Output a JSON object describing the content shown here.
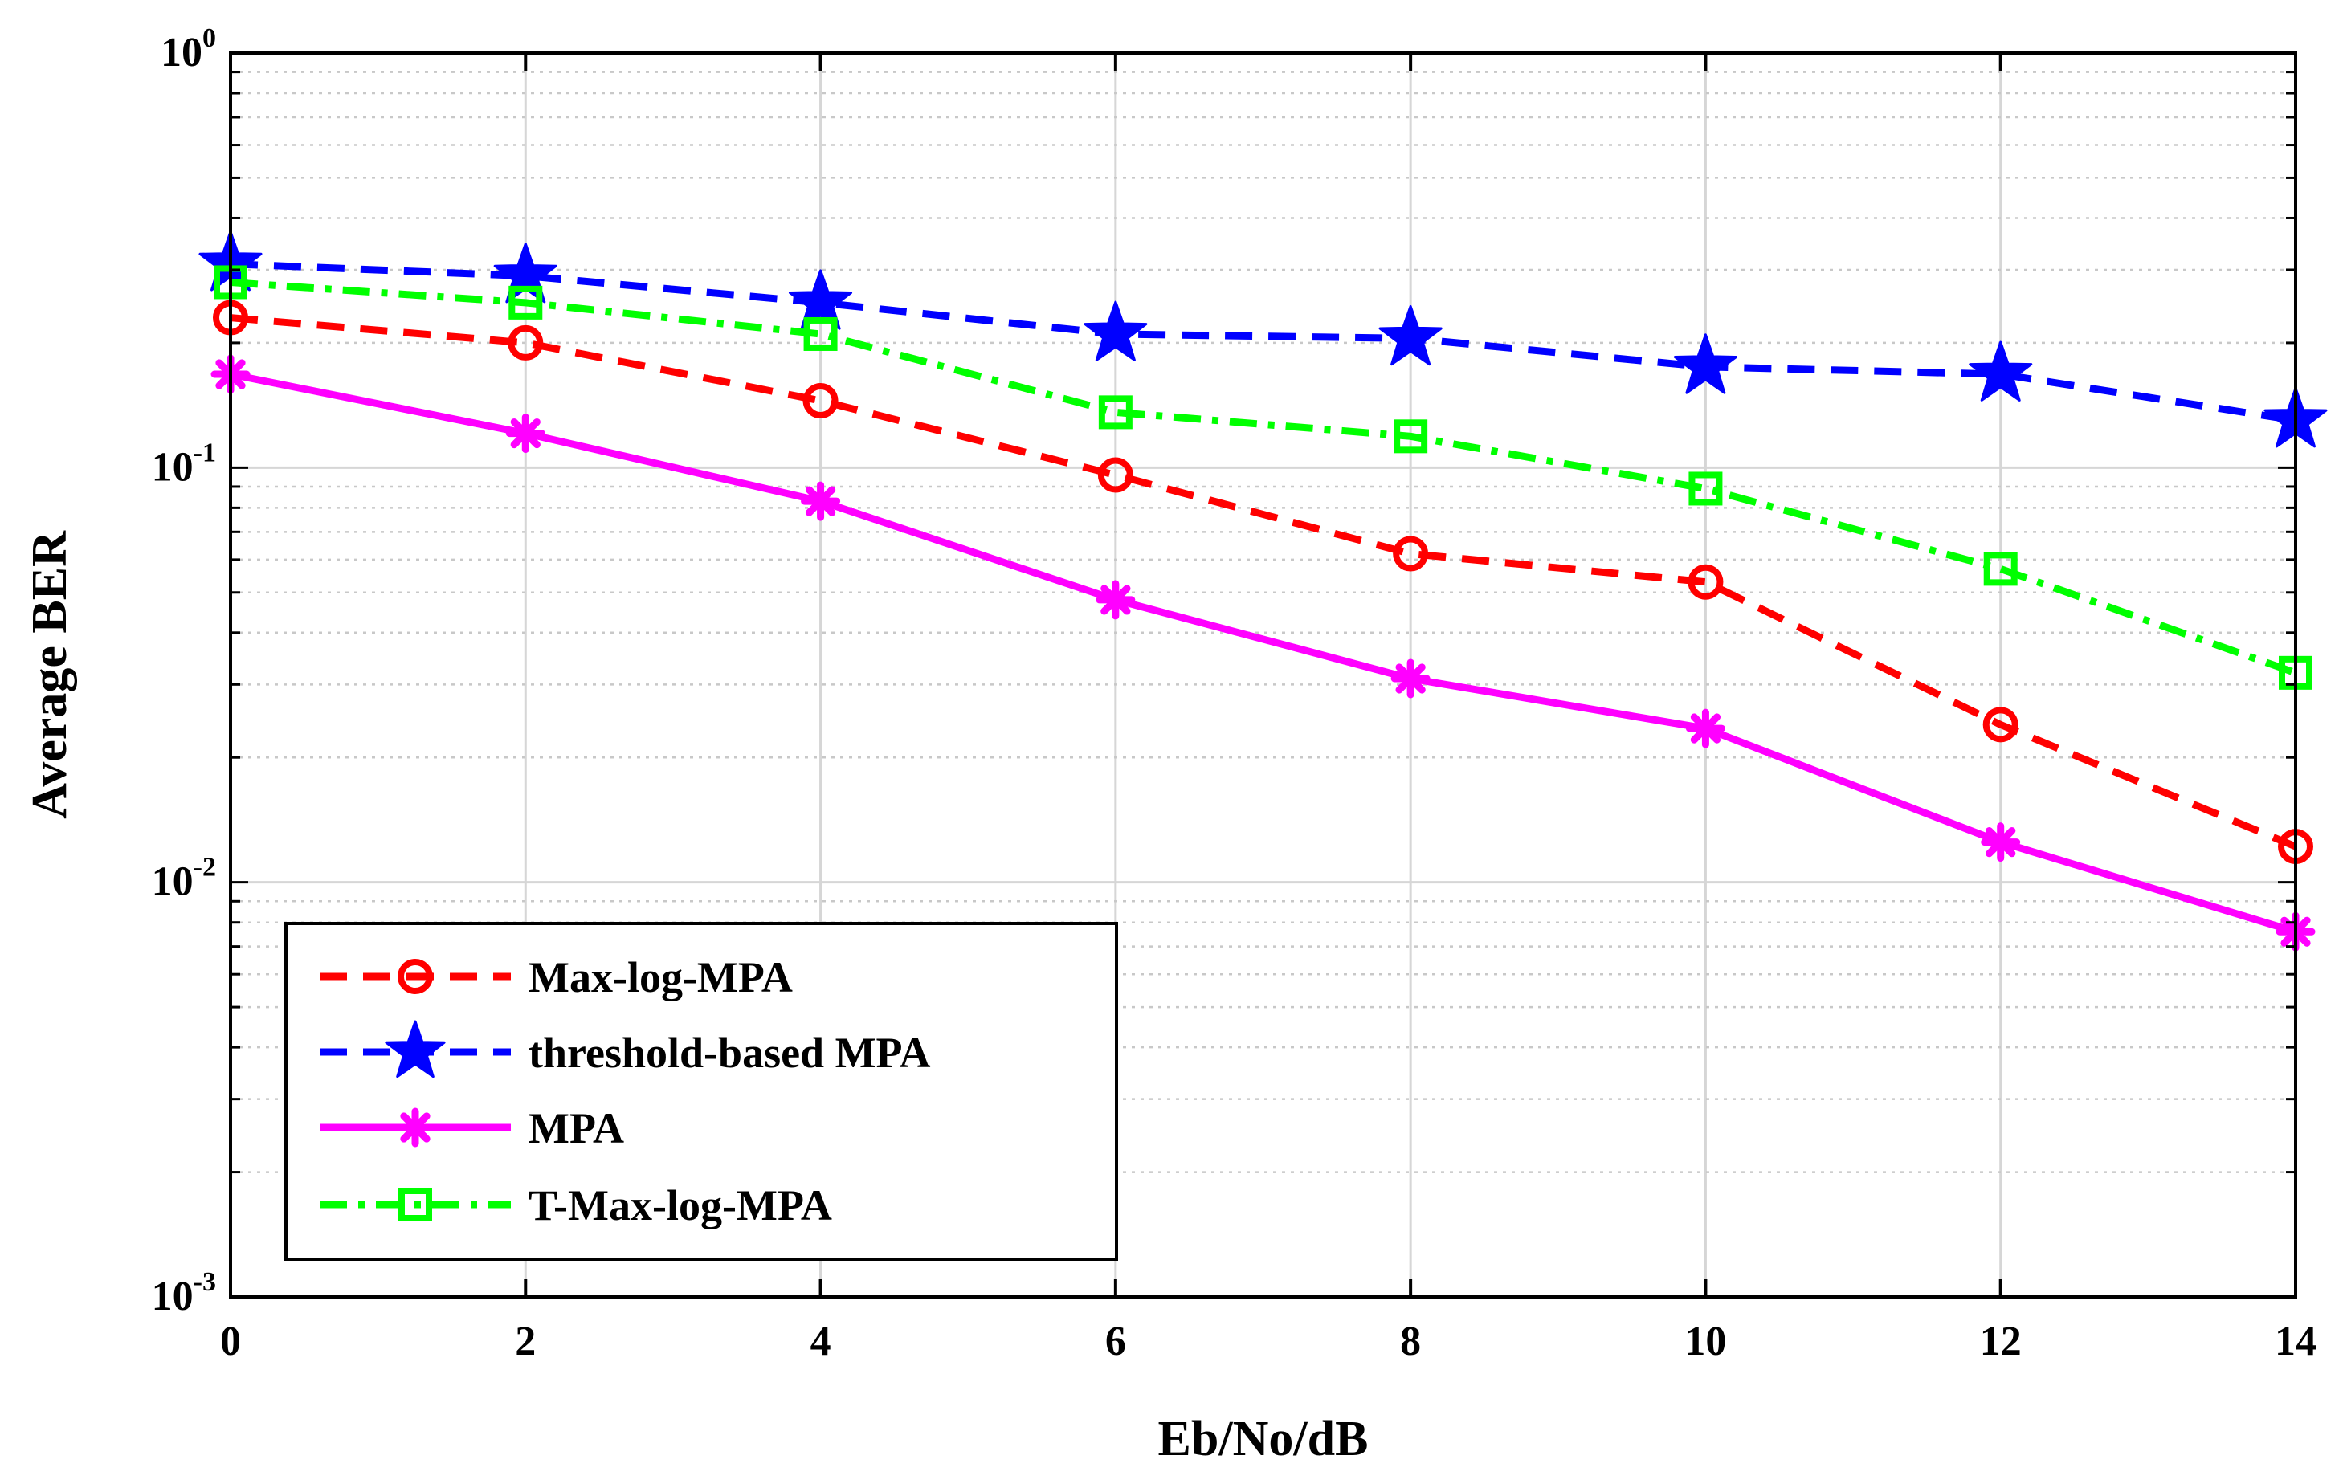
{
  "chart_data": {
    "type": "line",
    "title": "",
    "xlabel": "Eb/No/dB",
    "ylabel": "Average BER",
    "xscale": "linear",
    "yscale": "log",
    "xlim": [
      0,
      14
    ],
    "ylim": [
      0.001,
      1
    ],
    "grid": true,
    "legend_position": "bottom-left",
    "xticks": [
      0,
      2,
      4,
      6,
      8,
      10,
      12,
      14
    ],
    "x_tick_labels": [
      "0",
      "2",
      "4",
      "6",
      "8",
      "10",
      "12",
      "14"
    ],
    "yticks": [
      {
        "value": 0.001,
        "base": "10",
        "exp": "-3"
      },
      {
        "value": 0.01,
        "base": "10",
        "exp": "-2"
      },
      {
        "value": 0.1,
        "base": "10",
        "exp": "-1"
      },
      {
        "value": 1,
        "base": "10",
        "exp": "0"
      }
    ],
    "x": [
      0,
      2,
      4,
      6,
      8,
      10,
      12,
      14
    ],
    "series": [
      {
        "name": "Max-log-MPA",
        "color": "#ff0000",
        "dash": "dashed",
        "marker": "circle",
        "values": [
          0.23,
          0.2,
          0.145,
          0.096,
          0.062,
          0.053,
          0.024,
          0.0122
        ]
      },
      {
        "name": "threshold-based MPA",
        "color": "#0000ff",
        "dash": "dashed",
        "marker": "star",
        "values": [
          0.31,
          0.29,
          0.25,
          0.21,
          0.205,
          0.175,
          0.168,
          0.13
        ]
      },
      {
        "name": "MPA",
        "color": "#ff00ff",
        "dash": "solid",
        "marker": "asterisk",
        "values": [
          0.168,
          0.121,
          0.083,
          0.048,
          0.031,
          0.0235,
          0.0125,
          0.0076
        ]
      },
      {
        "name": "T-Max-log-MPA",
        "color": "#00ff00",
        "dash": "dashdot",
        "marker": "square",
        "values": [
          0.28,
          0.25,
          0.21,
          0.136,
          0.119,
          0.089,
          0.057,
          0.032
        ]
      }
    ]
  }
}
